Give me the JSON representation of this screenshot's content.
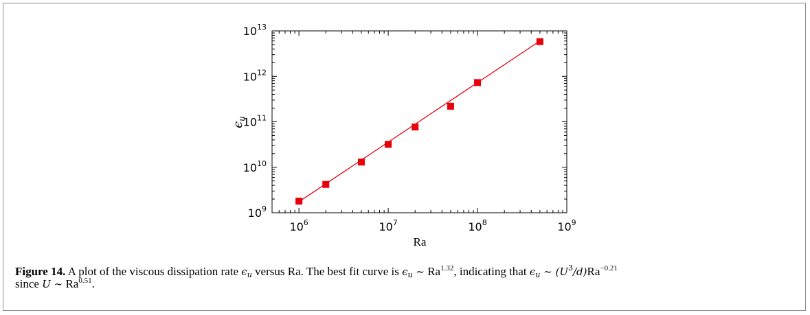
{
  "chart_data": {
    "type": "scatter",
    "xscale": "log",
    "yscale": "log",
    "xlim": [
      500000,
      1000000000
    ],
    "ylim": [
      1000000000,
      10000000000000
    ],
    "x_ticks": [
      {
        "base": "10",
        "exp": "6"
      },
      {
        "base": "10",
        "exp": "7"
      },
      {
        "base": "10",
        "exp": "8"
      },
      {
        "base": "10",
        "exp": "9"
      }
    ],
    "y_ticks": [
      {
        "base": "10",
        "exp": "9"
      },
      {
        "base": "10",
        "exp": "10"
      },
      {
        "base": "10",
        "exp": "11"
      },
      {
        "base": "10",
        "exp": "12"
      },
      {
        "base": "10",
        "exp": "13"
      }
    ],
    "xlabel": "Ra",
    "ylabel_symbol": "ϵ",
    "ylabel_sub": "u",
    "series": [
      {
        "kind": "markers",
        "color": "#e8000b",
        "x": [
          1000000,
          2000000,
          5000000,
          10000000,
          20000000,
          50000000,
          100000000,
          500000000
        ],
        "y": [
          1800000000,
          4200000000,
          13000000000,
          32000000000,
          77000000000,
          220000000000,
          730000000000,
          5800000000000
        ]
      },
      {
        "kind": "fit-line",
        "color": "#e8000b",
        "x": [
          1000000,
          500000000
        ],
        "y": [
          1750000000,
          6000000000000
        ]
      }
    ]
  },
  "caption": {
    "label": "Figure 14.",
    "text_1": "A plot of the viscous dissipation rate",
    "text_2": "versus",
    "text_3": ". The best fit curve is",
    "text_4": ", indicating that",
    "text_5": "since",
    "eps": "ϵ",
    "u_sub": "u",
    "ra": "Ra",
    "sim": "∼",
    "exp_fit": "1.32",
    "u3d": "(U",
    "u3d_exp": "3",
    "u3d_close": "/d)",
    "exp_neg": "−0.21",
    "U": "U",
    "exp_u": "0.51",
    "period": "."
  }
}
